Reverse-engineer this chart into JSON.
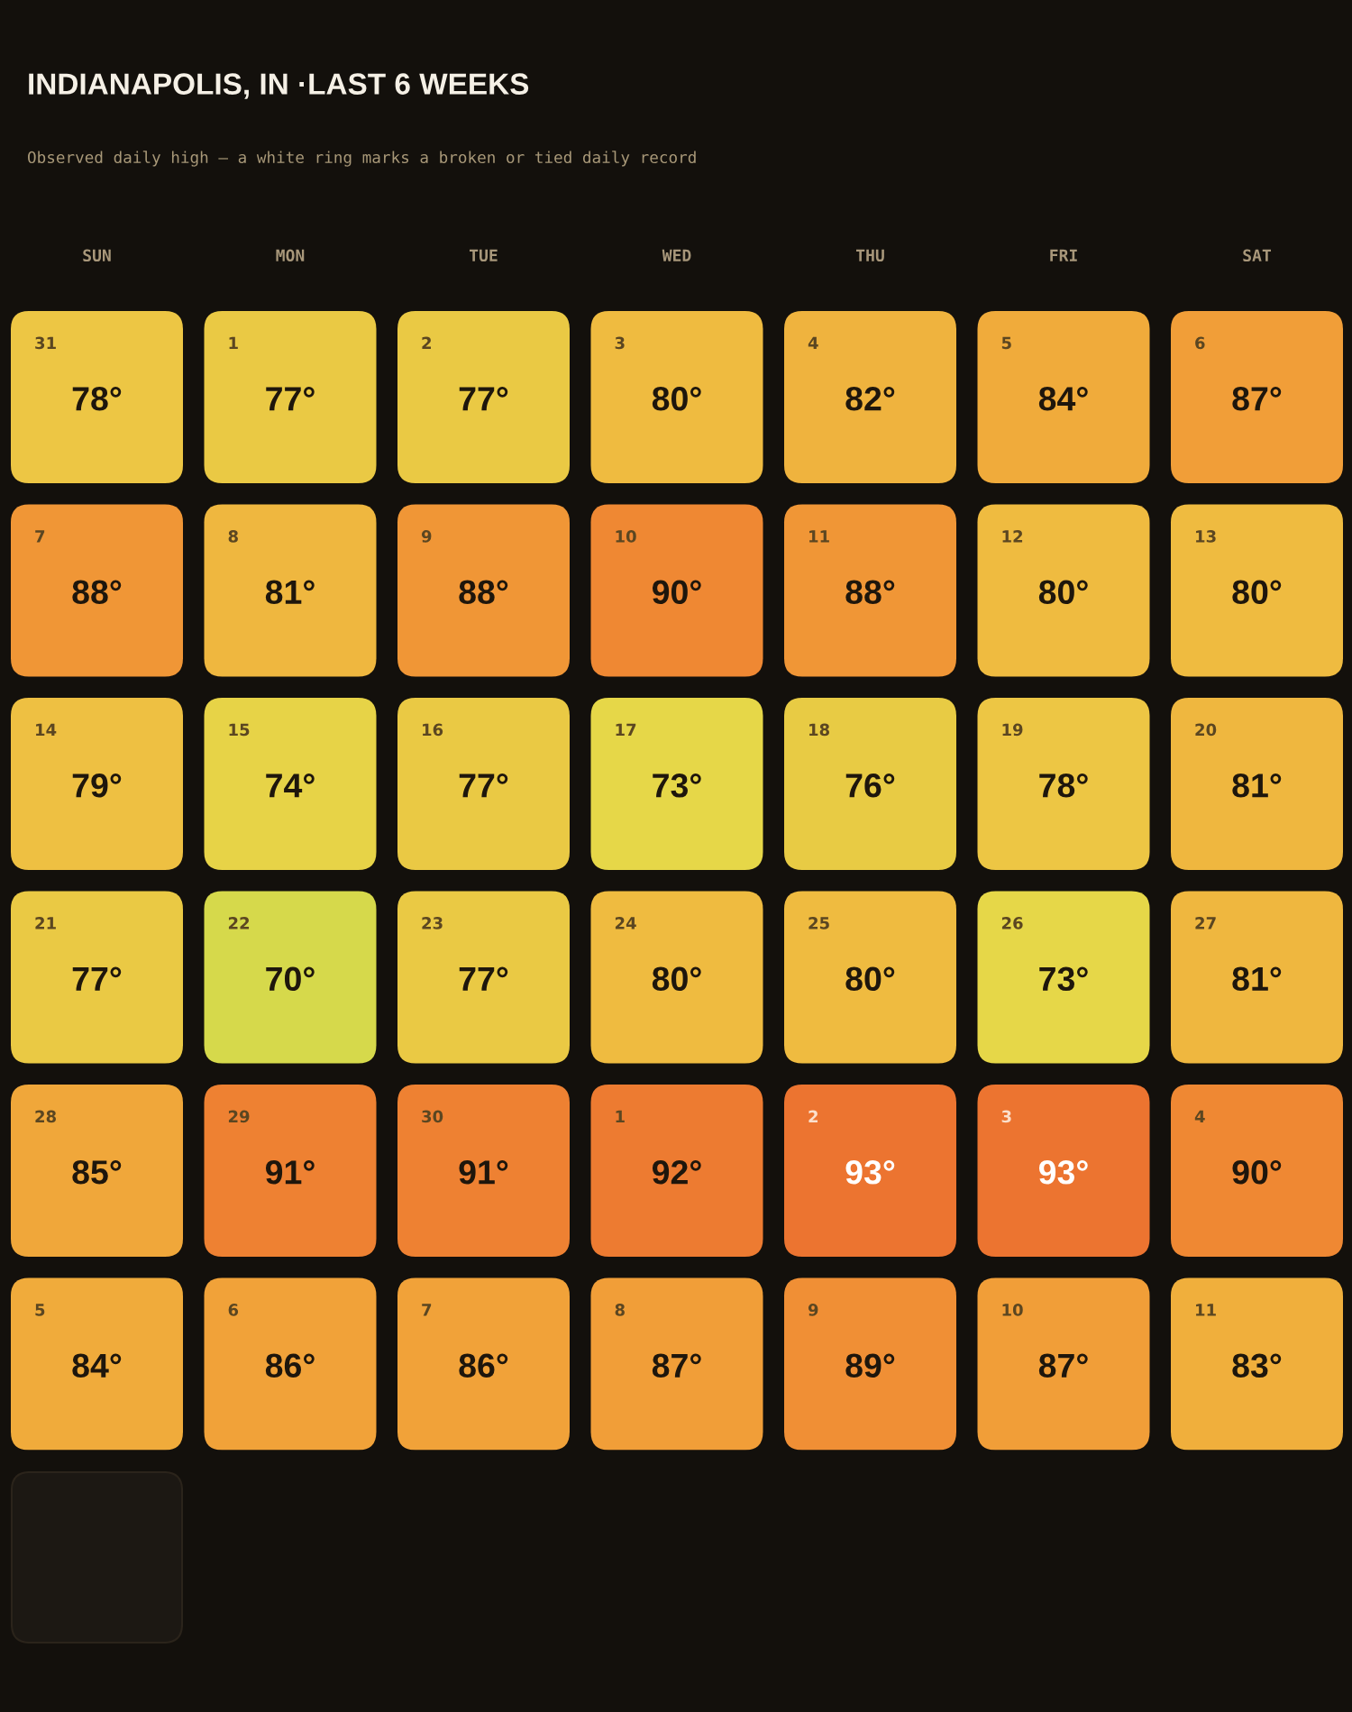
{
  "chart_data": {
    "type": "heatmap",
    "title": "INDIANAPOLIS, IN ·LAST 6 WEEKS",
    "subtitle": "Observed daily high — a white ring marks a broken or tied daily record",
    "categories": [
      "SUN",
      "MON",
      "TUE",
      "WED",
      "THU",
      "FRI",
      "SAT"
    ],
    "y_categories": [
      null,
      null,
      null,
      null,
      null,
      null
    ],
    "cells": [
      [
        78,
        77,
        77,
        80,
        82,
        84,
        87
      ],
      [
        88,
        81,
        88,
        90,
        88,
        80,
        80
      ],
      [
        79,
        74,
        77,
        73,
        76,
        78,
        81
      ],
      [
        77,
        70,
        77,
        80,
        80,
        73,
        81
      ],
      [
        85,
        91,
        91,
        92,
        93,
        93,
        90
      ],
      [
        84,
        86,
        86,
        87,
        89,
        87,
        83
      ]
    ],
    "cell_labels": [
      [
        "78°",
        "77°",
        "77°",
        "80°",
        "82°",
        "84°",
        "87°"
      ],
      [
        "88°",
        "81°",
        "88°",
        "90°",
        "88°",
        "80°",
        "80°"
      ],
      [
        "79°",
        "74°",
        "77°",
        "73°",
        "76°",
        "78°",
        "81°"
      ],
      [
        "77°",
        "70°",
        "77°",
        "80°",
        "80°",
        "73°",
        "81°"
      ],
      [
        "85°",
        "91°",
        "91°",
        "92°",
        "93°",
        "93°",
        "90°"
      ],
      [
        "84°",
        "86°",
        "86°",
        "87°",
        "89°",
        "87°",
        "83°"
      ]
    ],
    "annotations": [
      "31",
      "1",
      "2",
      "3",
      "4",
      "5",
      "6",
      "7",
      "8",
      "9",
      "10",
      "11",
      "12",
      "13",
      "14",
      "15",
      "16",
      "17",
      "18",
      "19",
      "20",
      "21",
      "22",
      "23",
      "24",
      "25",
      "26",
      "27",
      "28",
      "29",
      "30",
      "1",
      "2",
      "3",
      "4",
      "5",
      "6",
      "7",
      "8",
      "9",
      "10",
      "11"
    ]
  }
}
